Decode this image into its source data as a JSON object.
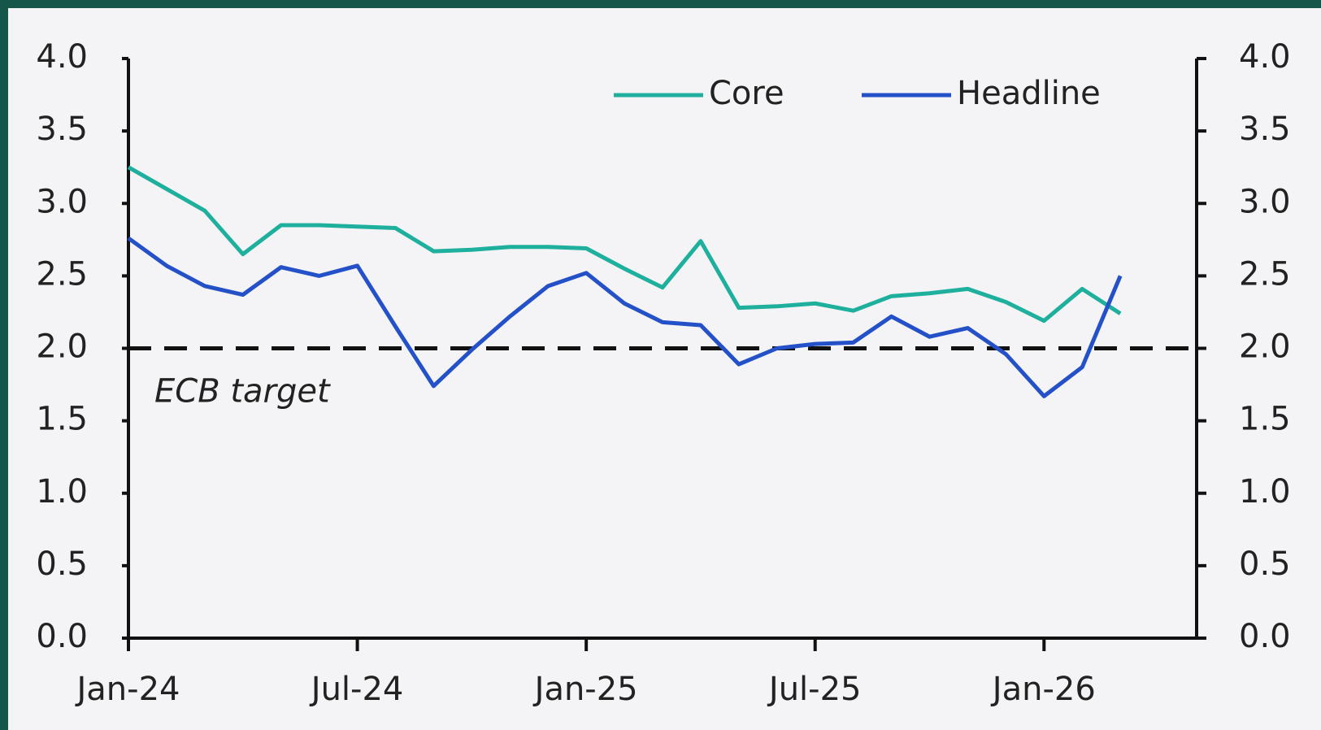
{
  "chart_data": {
    "type": "line",
    "categories": [
      "Jan-24",
      null,
      null,
      null,
      null,
      null,
      "Jul-24",
      null,
      null,
      null,
      null,
      null,
      "Jan-25",
      null,
      null,
      null,
      null,
      null,
      "Jul-25",
      null,
      null,
      null,
      null,
      null,
      "Jan-26",
      null,
      null
    ],
    "series": [
      {
        "name": "Core",
        "color": "#1fb09d",
        "values": [
          3.25,
          3.1,
          2.95,
          2.65,
          2.85,
          2.85,
          2.84,
          2.83,
          2.67,
          2.68,
          2.7,
          2.7,
          2.69,
          2.55,
          2.42,
          2.74,
          2.28,
          2.29,
          2.31,
          2.26,
          2.36,
          2.38,
          2.41,
          2.32,
          2.19,
          2.41,
          2.24
        ]
      },
      {
        "name": "Headline",
        "color": "#2450c8",
        "values": [
          2.76,
          2.57,
          2.43,
          2.37,
          2.56,
          2.5,
          2.57,
          2.15,
          1.74,
          1.99,
          2.22,
          2.43,
          2.52,
          2.31,
          2.18,
          2.16,
          1.89,
          2.0,
          2.03,
          2.04,
          2.22,
          2.08,
          2.14,
          1.96,
          1.67,
          1.87,
          2.5
        ]
      }
    ],
    "ylim": [
      0,
      4
    ],
    "yticks": [
      {
        "value": 0,
        "label": "0.0"
      },
      {
        "value": 0.5,
        "label": "0.5"
      },
      {
        "value": 1,
        "label": "1.0"
      },
      {
        "value": 1.5,
        "label": "1.5"
      },
      {
        "value": 2,
        "label": "2.0"
      },
      {
        "value": 2.5,
        "label": "2.5"
      },
      {
        "value": 3,
        "label": "3.0"
      },
      {
        "value": 3.5,
        "label": "3.5"
      },
      {
        "value": 4,
        "label": "4.0"
      }
    ],
    "y2lim": [
      0,
      4
    ],
    "y2ticks": [
      {
        "value": 0,
        "label": "0.0"
      },
      {
        "value": 0.5,
        "label": "0.5"
      },
      {
        "value": 1,
        "label": "1.0"
      },
      {
        "value": 1.5,
        "label": "1.5"
      },
      {
        "value": 2,
        "label": "2.0"
      },
      {
        "value": 2.5,
        "label": "2.5"
      },
      {
        "value": 3,
        "label": "3.0"
      },
      {
        "value": 3.5,
        "label": "3.5"
      },
      {
        "value": 4,
        "label": "4.0"
      }
    ],
    "reference_line": {
      "value": 2,
      "label": "ECB target"
    },
    "legend": "top-right",
    "grid": false
  }
}
